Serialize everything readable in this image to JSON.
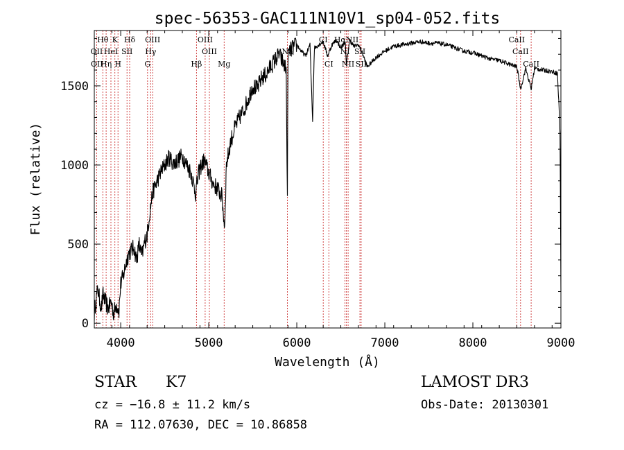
{
  "chart_data": {
    "type": "line",
    "title": "spec-56353-GAC111N10V1_sp04-052.fits",
    "xlabel": "Wavelength (Å)",
    "ylabel": "Flux (relative)",
    "xlim": [
      3700,
      9000
    ],
    "ylim": [
      -30,
      1850
    ],
    "x_ticks": [
      4000,
      5000,
      6000,
      7000,
      8000,
      9000
    ],
    "y_ticks": [
      0,
      500,
      1000,
      1500
    ],
    "grid": false,
    "line_color": "#000000",
    "marker_color": "#cc3333",
    "series": [
      {
        "name": "flux",
        "x": [
          3700,
          3720,
          3740,
          3760,
          3780,
          3800,
          3830,
          3860,
          3890,
          3920,
          3950,
          3980,
          4000,
          4030,
          4060,
          4090,
          4120,
          4150,
          4180,
          4210,
          4240,
          4270,
          4300,
          4330,
          4360,
          4400,
          4450,
          4500,
          4550,
          4600,
          4650,
          4700,
          4750,
          4800,
          4850,
          4880,
          4900,
          4950,
          5000,
          5050,
          5100,
          5150,
          5180,
          5200,
          5250,
          5300,
          5350,
          5400,
          5450,
          5500,
          5550,
          5600,
          5650,
          5700,
          5750,
          5800,
          5850,
          5880,
          5893,
          5900,
          5950,
          6000,
          6050,
          6100,
          6150,
          6180,
          6200,
          6250,
          6300,
          6350,
          6400,
          6450,
          6500,
          6550,
          6563,
          6600,
          6650,
          6700,
          6750,
          6800,
          6900,
          7000,
          7100,
          7200,
          7300,
          7400,
          7500,
          7600,
          7700,
          7800,
          7900,
          8000,
          8100,
          8200,
          8300,
          8400,
          8500,
          8542,
          8600,
          8662,
          8700,
          8800,
          8900,
          8960,
          8980,
          8990,
          9000
        ],
        "y": [
          60,
          150,
          220,
          150,
          100,
          180,
          130,
          90,
          140,
          60,
          120,
          80,
          250,
          300,
          380,
          440,
          460,
          480,
          400,
          500,
          420,
          510,
          560,
          700,
          820,
          880,
          950,
          1000,
          1050,
          1010,
          1030,
          1060,
          1000,
          950,
          820,
          930,
          980,
          1030,
          950,
          880,
          850,
          800,
          600,
          1000,
          1150,
          1240,
          1300,
          1350,
          1420,
          1500,
          1480,
          1550,
          1570,
          1620,
          1660,
          1700,
          1640,
          1600,
          760,
          1700,
          1740,
          1760,
          1720,
          1690,
          1760,
          1280,
          1740,
          1760,
          1780,
          1690,
          1760,
          1790,
          1740,
          1780,
          1630,
          1790,
          1750,
          1760,
          1700,
          1620,
          1680,
          1720,
          1750,
          1760,
          1770,
          1780,
          1770,
          1770,
          1760,
          1740,
          1720,
          1710,
          1690,
          1670,
          1660,
          1640,
          1620,
          1480,
          1610,
          1480,
          1610,
          1600,
          1590,
          1580,
          1350,
          1200,
          200
        ]
      }
    ],
    "annotations": [
      {
        "label": "Hθ",
        "x": 3797,
        "row": 1
      },
      {
        "label": "K",
        "x": 3934,
        "row": 1
      },
      {
        "label": "Hδ",
        "x": 4102,
        "row": 1
      },
      {
        "label": "OIII",
        "x": 4363,
        "row": 1
      },
      {
        "label": "OIII",
        "x": 4959,
        "row": 1
      },
      {
        "label": "CI",
        "x": 6300,
        "row": 1
      },
      {
        "label": "HαNII",
        "x": 6563,
        "row": 1
      },
      {
        "label": "CaII",
        "x": 8498,
        "row": 1
      },
      {
        "label": "OII",
        "x": 3727,
        "row": 2
      },
      {
        "label": "HeI",
        "x": 3889,
        "row": 2
      },
      {
        "label": "SII",
        "x": 4072,
        "row": 2
      },
      {
        "label": "Hγ",
        "x": 4340,
        "row": 2
      },
      {
        "label": "OIII",
        "x": 5007,
        "row": 2
      },
      {
        "label": "Na",
        "x": 5893,
        "row": 2
      },
      {
        "label": "NI",
        "x": 6548,
        "row": 2
      },
      {
        "label": "SII",
        "x": 6717,
        "row": 2
      },
      {
        "label": "CaII",
        "x": 8542,
        "row": 2
      },
      {
        "label": "OII",
        "x": 3729,
        "row": 3
      },
      {
        "label": "Hη",
        "x": 3835,
        "row": 3
      },
      {
        "label": "H",
        "x": 3969,
        "row": 3
      },
      {
        "label": "G",
        "x": 4305,
        "row": 3
      },
      {
        "label": "Hβ",
        "x": 4861,
        "row": 3
      },
      {
        "label": "Mg",
        "x": 5175,
        "row": 3
      },
      {
        "label": "CI",
        "x": 6364,
        "row": 3
      },
      {
        "label": "NII",
        "x": 6583,
        "row": 3
      },
      {
        "label": "SII",
        "x": 6731,
        "row": 3
      },
      {
        "label": "CaII",
        "x": 8662,
        "row": 3
      }
    ],
    "marker_lines": [
      3727,
      3797,
      3835,
      3889,
      3934,
      3969,
      4072,
      4102,
      4305,
      4340,
      4363,
      4861,
      4959,
      5007,
      5175,
      5893,
      6300,
      6364,
      6548,
      6563,
      6583,
      6717,
      6731,
      8498,
      8542,
      8662
    ]
  },
  "info": {
    "class_label": "STAR",
    "subclass": "K7",
    "cz": "cz = −16.8 ± 11.2 km/s",
    "coords": "RA = 112.07630, DEC =  10.86858",
    "survey": "LAMOST DR3",
    "obs_date": "Obs-Date: 20130301"
  }
}
